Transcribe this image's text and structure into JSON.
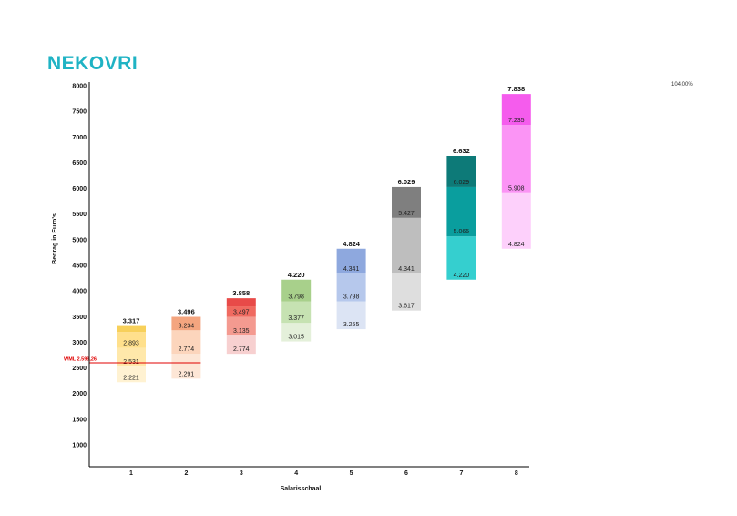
{
  "header": {
    "brand": "NEKOVRI",
    "corner_note": "104,00%"
  },
  "chart_data": {
    "type": "bar",
    "xlabel": "Salarisschaal",
    "ylabel": "Bedrag in Euro's",
    "ylim": [
      1000,
      8000
    ],
    "yticks": [
      1000,
      1500,
      2000,
      2500,
      3000,
      3500,
      4000,
      4500,
      5000,
      5500,
      6000,
      6500,
      7000,
      7500,
      8000
    ],
    "grid": false,
    "categories": [
      "1",
      "2",
      "3",
      "4",
      "5",
      "6",
      "7",
      "8"
    ],
    "bars": [
      {
        "category": "1",
        "min": 2221,
        "top_label": "3.317",
        "segments": [
          {
            "from": 2221,
            "to": 2531,
            "label": "2.221",
            "color": "#fff2d2"
          },
          {
            "from": 2531,
            "to": 2893,
            "label": "2.531",
            "color": "#ffe8aa"
          },
          {
            "from": 2893,
            "to": 3200,
            "label": "2.893",
            "color": "#ffe08c"
          },
          {
            "from": 3200,
            "to": 3317,
            "label": "",
            "color": "#f7d05a"
          }
        ]
      },
      {
        "category": "2",
        "min": 2291,
        "top_label": "3.496",
        "segments": [
          {
            "from": 2291,
            "to": 2774,
            "label": "2.291",
            "color": "#fde6d6"
          },
          {
            "from": 2774,
            "to": 3234,
            "label": "2.774",
            "color": "#fcd5bc"
          },
          {
            "from": 3234,
            "to": 3496,
            "label": "3.234",
            "color": "#f4a57f"
          }
        ]
      },
      {
        "category": "3",
        "min": 2774,
        "top_label": "3.858",
        "segments": [
          {
            "from": 2774,
            "to": 3135,
            "label": "2.774",
            "color": "#f7d0d0"
          },
          {
            "from": 3135,
            "to": 3497,
            "label": "3.135",
            "color": "#f49a90"
          },
          {
            "from": 3497,
            "to": 3700,
            "label": "3.497",
            "color": "#f06a60"
          },
          {
            "from": 3700,
            "to": 3858,
            "label": "",
            "color": "#e84a48"
          }
        ]
      },
      {
        "category": "4",
        "min": 3015,
        "top_label": "4.220",
        "segments": [
          {
            "from": 3015,
            "to": 3377,
            "label": "3.015",
            "color": "#e4f0da"
          },
          {
            "from": 3377,
            "to": 3798,
            "label": "3.377",
            "color": "#c6e2b2"
          },
          {
            "from": 3798,
            "to": 4220,
            "label": "3.798",
            "color": "#a8d08b"
          }
        ]
      },
      {
        "category": "5",
        "min": 3255,
        "top_label": "4.824",
        "segments": [
          {
            "from": 3255,
            "to": 3798,
            "label": "3.255",
            "color": "#dce4f4"
          },
          {
            "from": 3798,
            "to": 4341,
            "label": "3.798",
            "color": "#b6c8ec"
          },
          {
            "from": 4341,
            "to": 4824,
            "label": "4.341",
            "color": "#8ea8de"
          }
        ]
      },
      {
        "category": "6",
        "min": 3617,
        "top_label": "6.029",
        "segments": [
          {
            "from": 3617,
            "to": 4341,
            "label": "3.617",
            "color": "#dedede"
          },
          {
            "from": 4341,
            "to": 5427,
            "label": "4.341",
            "color": "#bebebe"
          },
          {
            "from": 5427,
            "to": 6029,
            "label": "5.427",
            "color": "#7f7f7f"
          }
        ]
      },
      {
        "category": "7",
        "min": 4220,
        "top_label": "6.632",
        "segments": [
          {
            "from": 4220,
            "to": 5065,
            "label": "4.220",
            "color": "#35cfcf"
          },
          {
            "from": 5065,
            "to": 6029,
            "label": "5.065",
            "color": "#0a9e9e"
          },
          {
            "from": 6029,
            "to": 6632,
            "label": "6.029",
            "color": "#0d7a78"
          }
        ]
      },
      {
        "category": "8",
        "min": 4824,
        "top_label": "7.838",
        "segments": [
          {
            "from": 4824,
            "to": 5908,
            "label": "4.824",
            "color": "#fdd0fb"
          },
          {
            "from": 5908,
            "to": 7235,
            "label": "5.908",
            "color": "#fb94f5"
          },
          {
            "from": 7235,
            "to": 7838,
            "label": "7.235",
            "color": "#f55ced"
          }
        ]
      }
    ],
    "reference_line": {
      "label": "WML 2.599,26",
      "value": 2599.26,
      "color": "#e00000",
      "x_extent": [
        "start",
        "2"
      ]
    }
  }
}
